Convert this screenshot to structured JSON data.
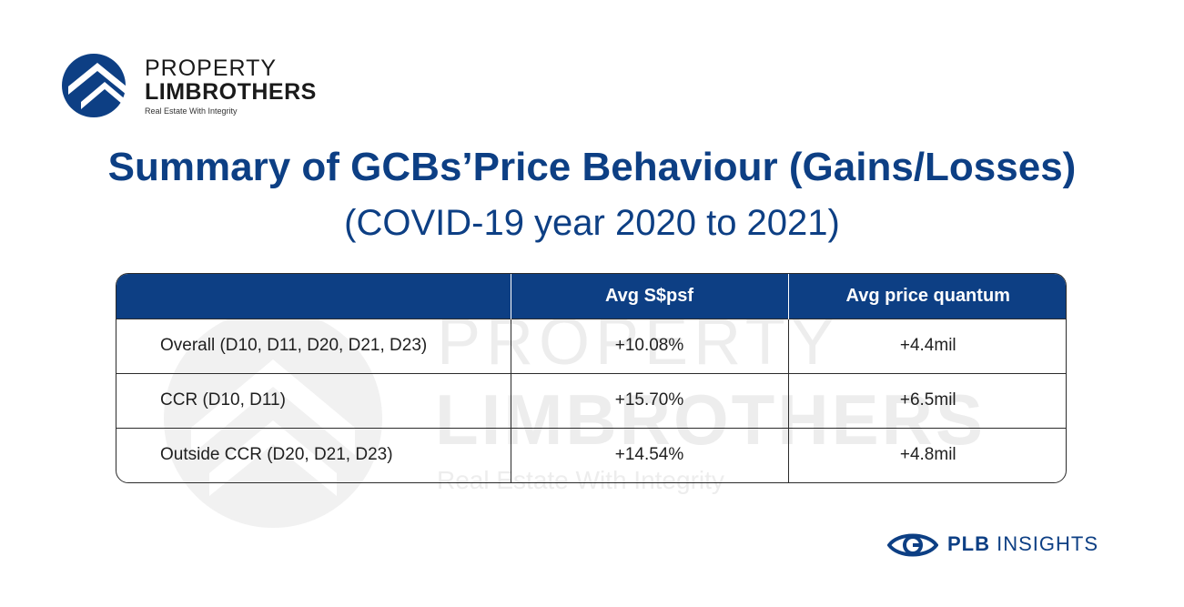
{
  "logo": {
    "line1": "PROPERTY",
    "line2": "LIMBROTHERS",
    "tagline": "Real Estate With Integrity",
    "icon": "house-roof-logo-icon"
  },
  "watermark": {
    "line1": "PROPERTY",
    "line2": "LIMBROTHERS",
    "tagline": "Real Estate With Integrity"
  },
  "title": "Summary of GCBs’Price Behaviour (Gains/Losses)",
  "subtitle": "(COVID-19 year 2020 to 2021)",
  "chart_data": {
    "type": "table",
    "columns": [
      "",
      "Avg S$psf",
      "Avg price quantum"
    ],
    "rows": [
      {
        "label": "Overall (D10, D11, D20, D21, D23)",
        "avg_psf": "+10.08%",
        "avg_quantum": "+4.4mil"
      },
      {
        "label": "CCR (D10, D11)",
        "avg_psf": "+15.70%",
        "avg_quantum": "+6.5mil"
      },
      {
        "label": "Outside CCR (D20, D21, D23)",
        "avg_psf": "+14.54%",
        "avg_quantum": "+4.8mil"
      }
    ]
  },
  "brand": {
    "name_bold": "PLB",
    "name_rest": "INSIGHTS",
    "icon": "eye-icon"
  },
  "colors": {
    "primary": "#0d3f84",
    "watermark": "#ededed",
    "text": "#1f1f1f"
  }
}
